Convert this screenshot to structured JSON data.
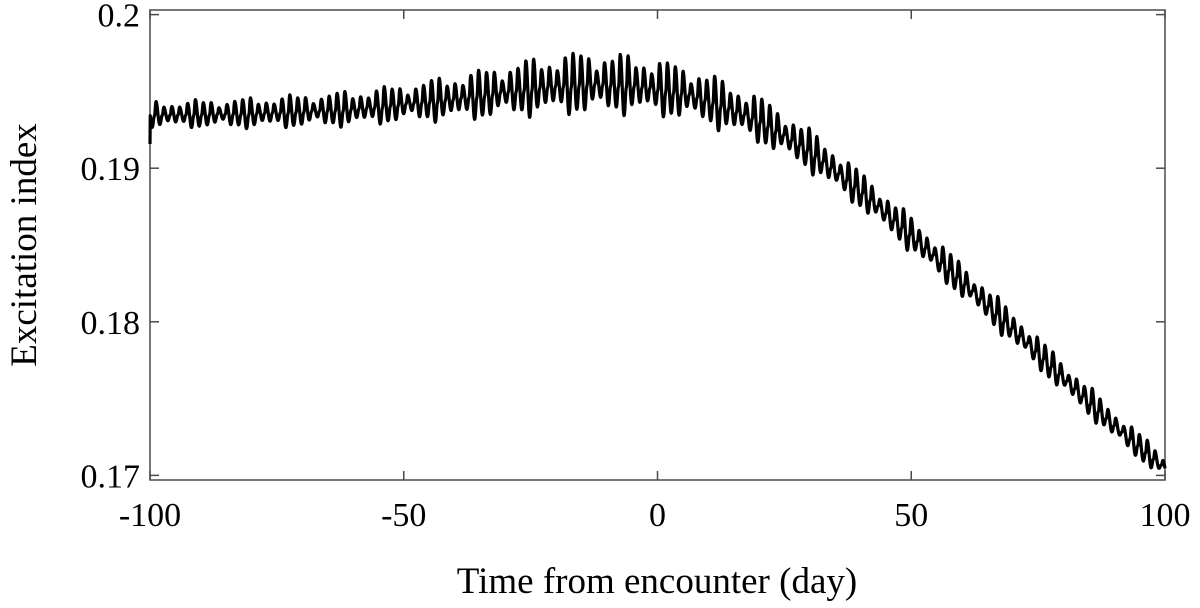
{
  "chart_data": {
    "type": "line",
    "title": "",
    "xlabel": "Time from encounter (day)",
    "ylabel": "Excitation index",
    "xlim": [
      -100,
      100
    ],
    "ylim": [
      0.1697,
      0.2003
    ],
    "x_ticks": [
      -100,
      -50,
      0,
      50,
      100
    ],
    "x_tick_labels": [
      "-100",
      "-50",
      "0",
      "50",
      "100"
    ],
    "y_ticks": [
      0.17,
      0.18,
      0.19,
      0.2
    ],
    "y_tick_labels": [
      "0.17",
      "0.18",
      "0.19",
      "0.2"
    ],
    "grid": false,
    "legend": "none",
    "series": [
      {
        "color": "#000000",
        "trend": {
          "x": [
            -100,
            -80,
            -60,
            -40,
            -25,
            -15,
            -5,
            5,
            10,
            20,
            30,
            40,
            50,
            60,
            70,
            80,
            90,
            100
          ],
          "y": [
            0.1935,
            0.1936,
            0.1939,
            0.1946,
            0.1953,
            0.1956,
            0.1955,
            0.195,
            0.1945,
            0.1932,
            0.1912,
            0.1886,
            0.1857,
            0.1827,
            0.1796,
            0.1764,
            0.1733,
            0.1705
          ]
        },
        "oscillation_period_days": 1.55,
        "oscillation_amplitude": {
          "x": [
            -100,
            -50,
            -25,
            -15,
            0,
            20,
            40,
            60,
            80,
            100
          ],
          "y": [
            0.0008,
            0.0012,
            0.0018,
            0.002,
            0.0018,
            0.0015,
            0.0012,
            0.0011,
            0.001,
            0.0008
          ]
        }
      }
    ]
  }
}
